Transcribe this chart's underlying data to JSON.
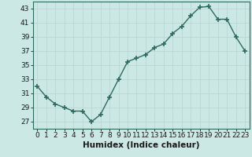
{
  "x": [
    0,
    1,
    2,
    3,
    4,
    5,
    6,
    7,
    8,
    9,
    10,
    11,
    12,
    13,
    14,
    15,
    16,
    17,
    18,
    19,
    20,
    21,
    22,
    23
  ],
  "y": [
    32,
    30.5,
    29.5,
    29,
    28.5,
    28.5,
    27,
    28,
    30.5,
    33,
    35.5,
    36,
    36.5,
    37.5,
    38,
    39.5,
    40.5,
    42,
    43.2,
    43.3,
    41.5,
    41.5,
    39,
    37
  ],
  "line_color": "#2e6b5e",
  "marker": "+",
  "marker_size": 5,
  "bg_color": "#cce8e4",
  "grid_color": "#b8d8d4",
  "spine_color": "#2e6b5e",
  "xlabel": "Humidex (Indice chaleur)",
  "ylim": [
    26,
    44
  ],
  "yticks": [
    27,
    29,
    31,
    33,
    35,
    37,
    39,
    41,
    43
  ],
  "xlim": [
    -0.5,
    23.5
  ],
  "xticks": [
    0,
    1,
    2,
    3,
    4,
    5,
    6,
    7,
    8,
    9,
    10,
    11,
    12,
    13,
    14,
    15,
    16,
    17,
    18,
    19,
    20,
    21,
    22,
    23
  ],
  "xlabel_fontsize": 7.5,
  "tick_fontsize": 6.5
}
